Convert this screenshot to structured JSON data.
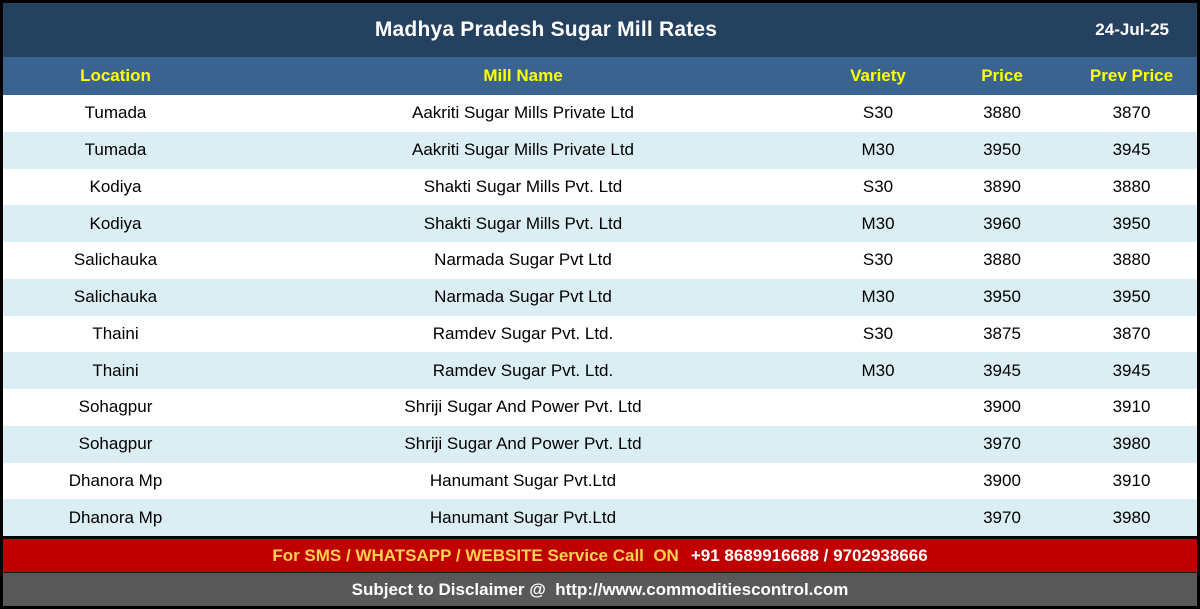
{
  "title_bar": {
    "title": "Madhya Pradesh Sugar Mill Rates",
    "date": "24-Jul-25"
  },
  "columns": {
    "location": "Location",
    "mill_name": "Mill Name",
    "variety": "Variety",
    "price": "Price",
    "prev_price": "Prev Price"
  },
  "rows": [
    {
      "location": "Tumada",
      "mill_name": "Aakriti Sugar Mills Private Ltd",
      "variety": "S30",
      "price": "3880",
      "prev_price": "3870"
    },
    {
      "location": "Tumada",
      "mill_name": "Aakriti Sugar Mills Private Ltd",
      "variety": "M30",
      "price": "3950",
      "prev_price": "3945"
    },
    {
      "location": "Kodiya",
      "mill_name": "Shakti Sugar Mills Pvt. Ltd",
      "variety": "S30",
      "price": "3890",
      "prev_price": "3880"
    },
    {
      "location": "Kodiya",
      "mill_name": "Shakti Sugar Mills Pvt. Ltd",
      "variety": "M30",
      "price": "3960",
      "prev_price": "3950"
    },
    {
      "location": "Salichauka",
      "mill_name": "Narmada Sugar Pvt Ltd",
      "variety": "S30",
      "price": "3880",
      "prev_price": "3880"
    },
    {
      "location": "Salichauka",
      "mill_name": "Narmada Sugar Pvt Ltd",
      "variety": "M30",
      "price": "3950",
      "prev_price": "3950"
    },
    {
      "location": "Thaini",
      "mill_name": "Ramdev Sugar Pvt. Ltd.",
      "variety": "S30",
      "price": "3875",
      "prev_price": "3870"
    },
    {
      "location": "Thaini",
      "mill_name": "Ramdev Sugar Pvt. Ltd.",
      "variety": "M30",
      "price": "3945",
      "prev_price": "3945"
    },
    {
      "location": "Sohagpur",
      "mill_name": "Shriji Sugar And Power Pvt. Ltd",
      "variety": "",
      "price": "3900",
      "prev_price": "3910"
    },
    {
      "location": "Sohagpur",
      "mill_name": "Shriji Sugar And Power Pvt. Ltd",
      "variety": "",
      "price": "3970",
      "prev_price": "3980"
    },
    {
      "location": "Dhanora Mp",
      "mill_name": "Hanumant Sugar Pvt.Ltd",
      "variety": "",
      "price": "3900",
      "prev_price": "3910"
    },
    {
      "location": "Dhanora Mp",
      "mill_name": "Hanumant Sugar Pvt.Ltd",
      "variety": "",
      "price": "3970",
      "prev_price": "3980"
    }
  ],
  "footer": {
    "service_label": "For SMS / WHATSAPP / WEBSITE Service Call  ON",
    "service_numbers": "+91 8689916688 / 9702938666",
    "disclaimer": "Subject to Disclaimer @  http://www.commoditiescontrol.com"
  },
  "colors": {
    "navy": "#24415F",
    "headerblue": "#3A648F",
    "yellow": "#FFFF00",
    "rowalt": "#DAEEF3",
    "red": "#C00000",
    "gold": "#FFD34D",
    "gray": "#595959"
  }
}
